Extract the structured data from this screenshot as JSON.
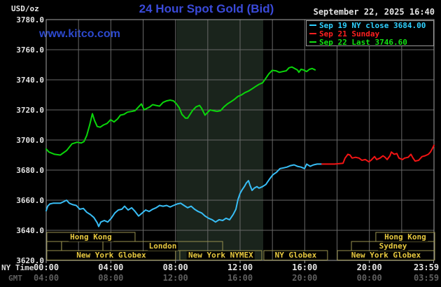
{
  "header": {
    "unit_label": "USD/oz",
    "title": "24 Hour Spot Gold (Bid)",
    "datetime": "September 22, 2025 16:40",
    "watermark": "www.kitco.com"
  },
  "legend": {
    "items": [
      {
        "label": "Sep 19 NY close 3684.00",
        "color": "#2fd0ff"
      },
      {
        "label": "Sep 21 Sunday",
        "color": "#ff2020"
      },
      {
        "label": "Sep 22 Last 3746.60",
        "color": "#12e312"
      }
    ]
  },
  "axis": {
    "ny_label": "NY Time",
    "gmt_label": "GMT",
    "x_ticks": [
      {
        "t": 0,
        "ny": "00:00",
        "gmt": "04:00"
      },
      {
        "t": 4,
        "ny": "04:00",
        "gmt": "08:00"
      },
      {
        "t": 8,
        "ny": "08:00",
        "gmt": "12:00"
      },
      {
        "t": 12,
        "ny": "12:00",
        "gmt": "16:00"
      },
      {
        "t": 16,
        "ny": "16:00",
        "gmt": "20:00"
      },
      {
        "t": 20,
        "ny": "20:00",
        "gmt": "00:00"
      },
      {
        "t": 23.98,
        "ny": "23:59",
        "gmt": "03:59"
      }
    ],
    "y_ticks": [
      {
        "v": 3780,
        "label": "3780.0"
      },
      {
        "v": 3760,
        "label": "3760.0"
      },
      {
        "v": 3740,
        "label": "3740.0"
      },
      {
        "v": 3720,
        "label": "3720.0"
      },
      {
        "v": 3700,
        "label": "3700.0"
      },
      {
        "v": 3680,
        "label": "3680.0"
      },
      {
        "v": 3660,
        "label": "3660.0"
      },
      {
        "v": 3640,
        "label": "3640.0"
      },
      {
        "v": 3620,
        "label": "3620.0"
      }
    ]
  },
  "sessions": {
    "rows": [
      {
        "boxes": [
          {
            "label": "Hong Kong",
            "t0": 0.04,
            "t1": 5.5
          },
          {
            "label": "Hong Kong",
            "t0": 20.4,
            "t1": 24.05
          }
        ]
      },
      {
        "boxes": [
          {
            "label": "",
            "t0": 0.04,
            "t1": 0.95
          },
          {
            "label": "",
            "t0": 0.95,
            "t1": 3.51
          },
          {
            "label": "London",
            "t0": 3.51,
            "t1": 10.92
          },
          {
            "label": "Sydney",
            "t0": 18.89,
            "t1": 24.05
          }
        ]
      },
      {
        "boxes": [
          {
            "label": "New York Globex",
            "t0": 0.04,
            "t1": 8.01
          },
          {
            "label": "New York NYMEX",
            "t0": 8.27,
            "t1": 13.34
          },
          {
            "label": "NY Globex",
            "t0": 13.47,
            "t1": 17.41
          },
          {
            "label": "New York Globex",
            "t0": 18.02,
            "t1": 24.05
          }
        ]
      }
    ]
  },
  "chart_data": {
    "type": "line",
    "title": "24 Hour Spot Gold (Bid)",
    "xlabel": "NY Time (hours 00:00-23:59)",
    "ylabel": "USD/oz",
    "xlim": [
      0,
      24
    ],
    "ylim": [
      3620,
      3780
    ],
    "grid": true,
    "x_grid_step_hours": 2,
    "y_grid_step": 20,
    "shaded_band_hours": [
      8.06,
      13.43
    ],
    "legend_position": "top-right",
    "series": [
      {
        "name": "Sep 19 NY close 3684.00",
        "color": "#38bdf5",
        "points": [
          [
            0.0,
            3653
          ],
          [
            0.09,
            3656
          ],
          [
            0.22,
            3657.5
          ],
          [
            0.43,
            3658
          ],
          [
            0.65,
            3658
          ],
          [
            0.87,
            3658
          ],
          [
            1.08,
            3659
          ],
          [
            1.26,
            3660
          ],
          [
            1.43,
            3658
          ],
          [
            1.65,
            3657
          ],
          [
            1.86,
            3656.5
          ],
          [
            2.08,
            3654
          ],
          [
            2.3,
            3654.5
          ],
          [
            2.51,
            3652
          ],
          [
            2.73,
            3650.5
          ],
          [
            2.95,
            3648.5
          ],
          [
            3.16,
            3645
          ],
          [
            3.25,
            3642.5
          ],
          [
            3.38,
            3645.5
          ],
          [
            3.6,
            3646.5
          ],
          [
            3.81,
            3645.5
          ],
          [
            4.03,
            3648
          ],
          [
            4.25,
            3651.5
          ],
          [
            4.46,
            3653.5
          ],
          [
            4.68,
            3654
          ],
          [
            4.85,
            3656
          ],
          [
            5.07,
            3653.5
          ],
          [
            5.29,
            3655
          ],
          [
            5.5,
            3652.5
          ],
          [
            5.72,
            3649.5
          ],
          [
            5.94,
            3651.5
          ],
          [
            6.15,
            3653.5
          ],
          [
            6.37,
            3652.5
          ],
          [
            6.59,
            3654
          ],
          [
            6.8,
            3655
          ],
          [
            7.02,
            3656.5
          ],
          [
            7.23,
            3656
          ],
          [
            7.45,
            3656.5
          ],
          [
            7.67,
            3655.5
          ],
          [
            7.88,
            3656.5
          ],
          [
            8.1,
            3657.5
          ],
          [
            8.32,
            3658
          ],
          [
            8.53,
            3656.5
          ],
          [
            8.75,
            3655
          ],
          [
            8.97,
            3656
          ],
          [
            9.18,
            3654
          ],
          [
            9.4,
            3652.5
          ],
          [
            9.62,
            3651.5
          ],
          [
            9.83,
            3649.5
          ],
          [
            10.05,
            3648
          ],
          [
            10.27,
            3647
          ],
          [
            10.48,
            3645.5
          ],
          [
            10.7,
            3647
          ],
          [
            10.92,
            3646.5
          ],
          [
            11.13,
            3648
          ],
          [
            11.35,
            3647
          ],
          [
            11.57,
            3650.5
          ],
          [
            11.74,
            3654
          ],
          [
            11.87,
            3660.5
          ],
          [
            12.0,
            3664.5
          ],
          [
            12.13,
            3667
          ],
          [
            12.26,
            3669
          ],
          [
            12.39,
            3671.5
          ],
          [
            12.52,
            3673
          ],
          [
            12.61,
            3670
          ],
          [
            12.74,
            3666.5
          ],
          [
            12.87,
            3668
          ],
          [
            13.04,
            3669
          ],
          [
            13.17,
            3668
          ],
          [
            13.39,
            3669
          ],
          [
            13.6,
            3670.5
          ],
          [
            13.82,
            3674
          ],
          [
            14.04,
            3677
          ],
          [
            14.25,
            3678.5
          ],
          [
            14.47,
            3681
          ],
          [
            14.69,
            3681.5
          ],
          [
            14.9,
            3682
          ],
          [
            15.12,
            3683
          ],
          [
            15.34,
            3683.5
          ],
          [
            15.55,
            3682.5
          ],
          [
            15.77,
            3682
          ],
          [
            15.99,
            3681
          ],
          [
            16.12,
            3684
          ],
          [
            16.33,
            3682.5
          ],
          [
            16.55,
            3683.5
          ],
          [
            16.77,
            3684
          ],
          [
            17.07,
            3684
          ]
        ]
      },
      {
        "name": "Sep 21 Sunday",
        "color": "#f21414",
        "points": [
          [
            17.07,
            3684
          ],
          [
            17.85,
            3684
          ],
          [
            18.37,
            3684.5
          ],
          [
            18.5,
            3688
          ],
          [
            18.67,
            3690.5
          ],
          [
            18.8,
            3690
          ],
          [
            18.93,
            3688
          ],
          [
            19.15,
            3688.5
          ],
          [
            19.36,
            3688
          ],
          [
            19.54,
            3686.5
          ],
          [
            19.75,
            3687
          ],
          [
            19.97,
            3685.5
          ],
          [
            20.1,
            3686.5
          ],
          [
            20.32,
            3689
          ],
          [
            20.45,
            3687
          ],
          [
            20.66,
            3688
          ],
          [
            20.84,
            3689.5
          ],
          [
            20.97,
            3688.5
          ],
          [
            21.1,
            3687
          ],
          [
            21.27,
            3689.5
          ],
          [
            21.36,
            3692
          ],
          [
            21.53,
            3690.5
          ],
          [
            21.7,
            3691
          ],
          [
            21.83,
            3688
          ],
          [
            22.05,
            3687
          ],
          [
            22.18,
            3688
          ],
          [
            22.4,
            3688.5
          ],
          [
            22.57,
            3690.5
          ],
          [
            22.7,
            3688
          ],
          [
            22.83,
            3686
          ],
          [
            23.05,
            3686.5
          ],
          [
            23.26,
            3689
          ],
          [
            23.44,
            3689.5
          ],
          [
            23.65,
            3690.5
          ],
          [
            23.78,
            3692
          ],
          [
            23.91,
            3694.5
          ],
          [
            24.0,
            3696.5
          ]
        ]
      },
      {
        "name": "Sep 22 Last 3746.60",
        "color": "#0ad50a",
        "points": [
          [
            0.0,
            3694
          ],
          [
            0.17,
            3692
          ],
          [
            0.52,
            3690.5
          ],
          [
            0.87,
            3690
          ],
          [
            1.26,
            3693
          ],
          [
            1.6,
            3697.5
          ],
          [
            1.91,
            3698.5
          ],
          [
            2.17,
            3698
          ],
          [
            2.34,
            3699
          ],
          [
            2.51,
            3703
          ],
          [
            2.69,
            3710
          ],
          [
            2.86,
            3717.5
          ],
          [
            2.99,
            3713
          ],
          [
            3.16,
            3709
          ],
          [
            3.34,
            3708.5
          ],
          [
            3.55,
            3710
          ],
          [
            3.77,
            3711
          ],
          [
            3.99,
            3713.5
          ],
          [
            4.2,
            3712
          ],
          [
            4.42,
            3714
          ],
          [
            4.59,
            3716.5
          ],
          [
            4.81,
            3717
          ],
          [
            5.03,
            3718.5
          ],
          [
            5.29,
            3719
          ],
          [
            5.5,
            3719.5
          ],
          [
            5.72,
            3722
          ],
          [
            5.89,
            3724
          ],
          [
            6.06,
            3720
          ],
          [
            6.24,
            3721
          ],
          [
            6.41,
            3722
          ],
          [
            6.59,
            3723.5
          ],
          [
            6.8,
            3723
          ],
          [
            7.02,
            3722.5
          ],
          [
            7.23,
            3725
          ],
          [
            7.45,
            3726
          ],
          [
            7.67,
            3726.5
          ],
          [
            7.88,
            3726
          ],
          [
            8.06,
            3724
          ],
          [
            8.23,
            3721.5
          ],
          [
            8.4,
            3717
          ],
          [
            8.49,
            3716
          ],
          [
            8.62,
            3714.5
          ],
          [
            8.75,
            3714.5
          ],
          [
            9.05,
            3719.5
          ],
          [
            9.27,
            3722
          ],
          [
            9.49,
            3723
          ],
          [
            9.62,
            3721
          ],
          [
            9.83,
            3716.5
          ],
          [
            9.96,
            3718
          ],
          [
            10.14,
            3720
          ],
          [
            10.35,
            3719.5
          ],
          [
            10.57,
            3719
          ],
          [
            10.79,
            3719.5
          ],
          [
            11.0,
            3722
          ],
          [
            11.22,
            3724
          ],
          [
            11.44,
            3725.5
          ],
          [
            11.65,
            3727
          ],
          [
            11.87,
            3729
          ],
          [
            12.09,
            3730
          ],
          [
            12.3,
            3731.5
          ],
          [
            12.52,
            3732.5
          ],
          [
            12.74,
            3734
          ],
          [
            12.95,
            3735.5
          ],
          [
            13.17,
            3737
          ],
          [
            13.39,
            3738
          ],
          [
            13.56,
            3740.5
          ],
          [
            13.78,
            3744
          ],
          [
            13.99,
            3746.3
          ],
          [
            14.21,
            3746
          ],
          [
            14.43,
            3745
          ],
          [
            14.64,
            3745.5
          ],
          [
            14.86,
            3746
          ],
          [
            15.03,
            3748
          ],
          [
            15.21,
            3748.5
          ],
          [
            15.38,
            3747.5
          ],
          [
            15.55,
            3746.5
          ],
          [
            15.64,
            3745
          ],
          [
            15.77,
            3747
          ],
          [
            15.94,
            3746.5
          ],
          [
            16.12,
            3745.5
          ],
          [
            16.29,
            3747
          ],
          [
            16.46,
            3747.5
          ],
          [
            16.64,
            3746.6
          ]
        ]
      }
    ]
  },
  "colors": {
    "grid": "#686868",
    "plot_border": "#a4a4a4",
    "shaded_band": "#1a241c",
    "session_box_border": "#97914e",
    "session_label": "#e8c93f",
    "tick_mark": "#a4a4a4"
  }
}
